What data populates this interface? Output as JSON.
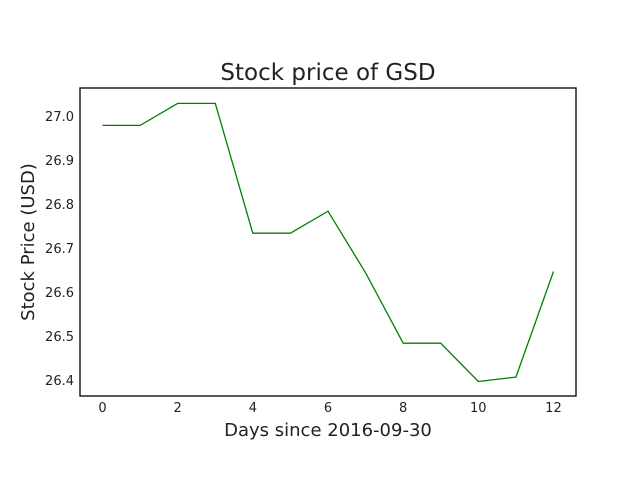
{
  "chart_data": {
    "type": "line",
    "title": "Stock price of GSD",
    "xlabel": "Days since 2016-09-30",
    "ylabel": "Stock Price (USD)",
    "x": [
      0,
      1,
      2,
      3,
      4,
      5,
      6,
      7,
      8,
      9,
      10,
      11,
      12
    ],
    "series": [
      {
        "values": [
          26.98,
          26.98,
          27.03,
          27.03,
          26.735,
          26.735,
          26.785,
          26.645,
          26.485,
          26.485,
          26.398,
          26.408,
          26.648
        ],
        "color": "#008000"
      }
    ],
    "xlim": [
      -0.6,
      12.6
    ],
    "ylim": [
      26.365,
      27.065
    ],
    "xticks": [
      0,
      2,
      4,
      6,
      8,
      10,
      12
    ],
    "xtick_labels": [
      "0",
      "2",
      "4",
      "6",
      "8",
      "10",
      "12"
    ],
    "yticks": [
      26.4,
      26.5,
      26.6,
      26.7,
      26.8,
      26.9,
      27.0
    ],
    "ytick_labels": [
      "26.4",
      "26.5",
      "26.6",
      "26.7",
      "26.8",
      "26.9",
      "27.0"
    ],
    "grid": false,
    "legend": "none"
  }
}
